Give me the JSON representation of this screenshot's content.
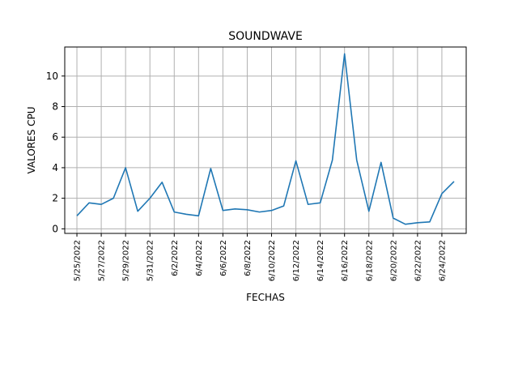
{
  "chart_data": {
    "type": "line",
    "title": "SOUNDWAVE",
    "xlabel": "FECHAS",
    "ylabel": "VALORES CPU",
    "grid": true,
    "line_color": "#1f77b4",
    "x": [
      "5/25/2022",
      "5/26/2022",
      "5/27/2022",
      "5/28/2022",
      "5/29/2022",
      "5/30/2022",
      "5/31/2022",
      "6/1/2022",
      "6/2/2022",
      "6/3/2022",
      "6/4/2022",
      "6/5/2022",
      "6/6/2022",
      "6/7/2022",
      "6/8/2022",
      "6/9/2022",
      "6/10/2022",
      "6/11/2022",
      "6/12/2022",
      "6/13/2022",
      "6/14/2022",
      "6/15/2022",
      "6/16/2022",
      "6/17/2022",
      "6/18/2022",
      "6/19/2022",
      "6/20/2022",
      "6/21/2022",
      "6/22/2022",
      "6/23/2022",
      "6/24/2022",
      "6/25/2022"
    ],
    "values": [
      0.85,
      1.7,
      1.6,
      2.0,
      4.0,
      1.15,
      2.0,
      3.05,
      1.1,
      0.95,
      0.85,
      3.95,
      1.2,
      1.3,
      1.25,
      1.1,
      1.2,
      1.5,
      4.45,
      1.6,
      1.7,
      4.5,
      11.45,
      4.5,
      1.15,
      4.35,
      0.7,
      0.3,
      0.4,
      0.45,
      2.3,
      3.1
    ],
    "xticks": [
      "5/25/2022",
      "5/27/2022",
      "5/29/2022",
      "5/31/2022",
      "6/2/2022",
      "6/4/2022",
      "6/6/2022",
      "6/8/2022",
      "6/10/2022",
      "6/12/2022",
      "6/14/2022",
      "6/16/2022",
      "6/18/2022",
      "6/20/2022",
      "6/22/2022",
      "6/24/2022"
    ],
    "yticks": [
      0,
      2,
      4,
      6,
      8,
      10
    ],
    "ylim": [
      -0.3,
      11.9
    ],
    "xlim": [
      "5/24/2022",
      "6/26/2022"
    ]
  }
}
